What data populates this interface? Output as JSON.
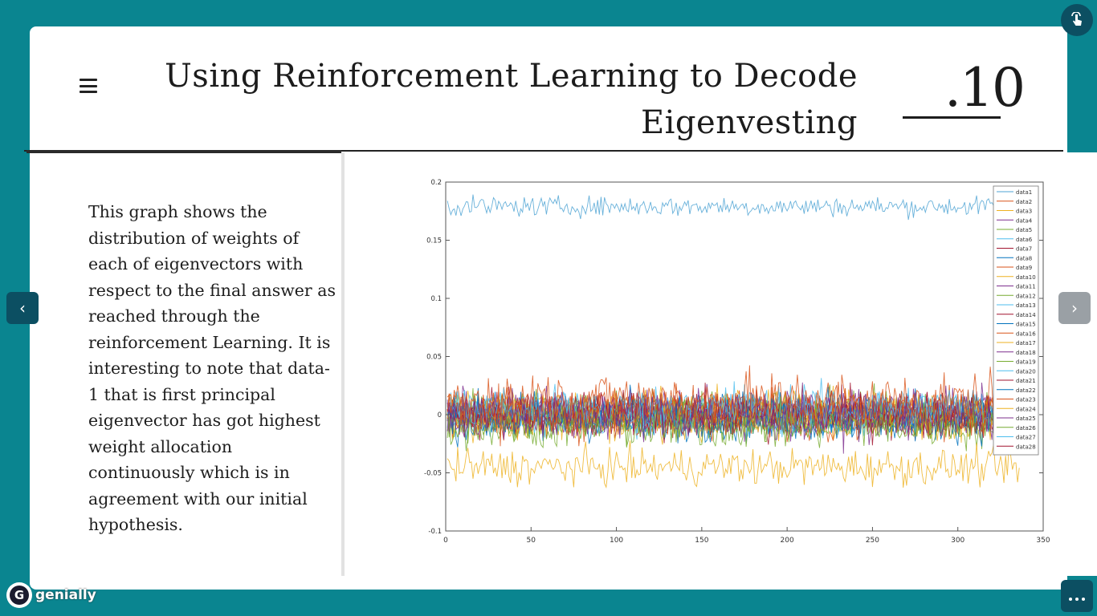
{
  "slide": {
    "title_line1": "Using Reinforcement Learning to Decode",
    "title_line2": "Eigenvesting",
    "number": ".10",
    "body": "This graph shows the distribution of weights of each of eigenvectors with respect to the final answer as reached through the reinforcement Learning. It is interesting to note that data-1 that is first principal eigenvector has got highest weight allocation continuously which is in agreement with our initial hypothesis."
  },
  "nav": {
    "prev": "‹",
    "next": "›"
  },
  "brand": {
    "name": "genially",
    "logo_letter": "G"
  },
  "icons": {
    "menu": "menu-icon",
    "corner": "pointer-icon",
    "more": "more-icon"
  },
  "colors": {
    "background": "#0a8590",
    "dark_button": "#0c4f62"
  },
  "chart_data": {
    "type": "line",
    "xlim": [
      0,
      350
    ],
    "ylim": [
      -0.1,
      0.2
    ],
    "x_ticks": [
      "0",
      "50",
      "100",
      "150",
      "200",
      "250",
      "300",
      "350"
    ],
    "y_ticks": [
      "-0.1",
      "-0.05",
      "0",
      "0.05",
      "0.1",
      "0.15",
      "0.2"
    ],
    "n_points": 336,
    "legend_position": "top-right",
    "series": [
      {
        "name": "data1",
        "mean": 0.179,
        "noise": 0.006,
        "color": "#4da3d4"
      },
      {
        "name": "data2",
        "mean": 0.01,
        "noise": 0.02,
        "color": "#d95319"
      },
      {
        "name": "data3",
        "mean": -0.045,
        "noise": 0.011,
        "color": "#edb120"
      },
      {
        "name": "data4",
        "mean": 0.0,
        "noise": 0.016,
        "color": "#7e2f8e"
      },
      {
        "name": "data5",
        "mean": -0.01,
        "noise": 0.014,
        "color": "#77ac30"
      },
      {
        "name": "data6",
        "mean": 0.005,
        "noise": 0.014,
        "color": "#4dbeee"
      },
      {
        "name": "data7",
        "mean": 0.0,
        "noise": 0.014,
        "color": "#a2142f"
      },
      {
        "name": "data8",
        "mean": -0.005,
        "noise": 0.013,
        "color": "#0072bd"
      },
      {
        "name": "data9",
        "mean": 0.008,
        "noise": 0.014,
        "color": "#d95319"
      },
      {
        "name": "data10",
        "mean": -0.003,
        "noise": 0.013,
        "color": "#edb120"
      },
      {
        "name": "data11",
        "mean": 0.002,
        "noise": 0.013,
        "color": "#7e2f8e"
      },
      {
        "name": "data12",
        "mean": -0.006,
        "noise": 0.013,
        "color": "#77ac30"
      },
      {
        "name": "data13",
        "mean": 0.004,
        "noise": 0.013,
        "color": "#4dbeee"
      },
      {
        "name": "data14",
        "mean": -0.002,
        "noise": 0.013,
        "color": "#a2142f"
      },
      {
        "name": "data15",
        "mean": 0.003,
        "noise": 0.012,
        "color": "#0072bd"
      },
      {
        "name": "data16",
        "mean": -0.004,
        "noise": 0.012,
        "color": "#d95319"
      },
      {
        "name": "data17",
        "mean": 0.006,
        "noise": 0.012,
        "color": "#edb120"
      },
      {
        "name": "data18",
        "mean": -0.001,
        "noise": 0.012,
        "color": "#7e2f8e"
      },
      {
        "name": "data19",
        "mean": 0.002,
        "noise": 0.012,
        "color": "#77ac30"
      },
      {
        "name": "data20",
        "mean": -0.003,
        "noise": 0.012,
        "color": "#4dbeee"
      },
      {
        "name": "data21",
        "mean": 0.001,
        "noise": 0.012,
        "color": "#a2142f"
      },
      {
        "name": "data22",
        "mean": -0.002,
        "noise": 0.011,
        "color": "#0072bd"
      },
      {
        "name": "data23",
        "mean": 0.004,
        "noise": 0.011,
        "color": "#d95319"
      },
      {
        "name": "data24",
        "mean": -0.005,
        "noise": 0.011,
        "color": "#edb120"
      },
      {
        "name": "data25",
        "mean": 0.0,
        "noise": 0.011,
        "color": "#7e2f8e"
      },
      {
        "name": "data26",
        "mean": 0.003,
        "noise": 0.011,
        "color": "#77ac30"
      },
      {
        "name": "data27",
        "mean": -0.001,
        "noise": 0.011,
        "color": "#4dbeee"
      },
      {
        "name": "data28",
        "mean": 0.002,
        "noise": 0.011,
        "color": "#a2142f"
      }
    ]
  }
}
